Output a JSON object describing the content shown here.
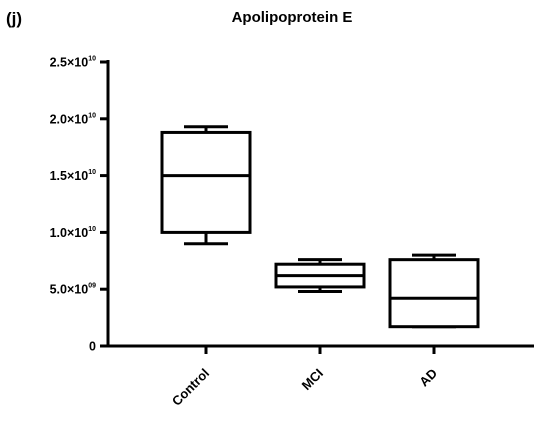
{
  "panel_label": "(j)",
  "chart_data": {
    "type": "box",
    "title": "Apolipoprotein E",
    "xlabel": "",
    "ylabel": "",
    "ylim": [
      0,
      25000000000.0
    ],
    "y_ticks": [
      {
        "value": 0,
        "mantissa": "0",
        "exponent": ""
      },
      {
        "value": 5000000000.0,
        "mantissa": "5.0×10",
        "exponent": "09"
      },
      {
        "value": 10000000000.0,
        "mantissa": "1.0×10",
        "exponent": "10"
      },
      {
        "value": 15000000000.0,
        "mantissa": "1.5×10",
        "exponent": "10"
      },
      {
        "value": 20000000000.0,
        "mantissa": "2.0×10",
        "exponent": "10"
      },
      {
        "value": 25000000000.0,
        "mantissa": "2.5×10",
        "exponent": "10"
      }
    ],
    "categories": [
      "Control",
      "MCI",
      "AD"
    ],
    "boxes": [
      {
        "category": "Control",
        "min": 9000000000.0,
        "q1": 10000000000.0,
        "median": 15000000000.0,
        "q3": 18800000000.0,
        "max": 19300000000.0
      },
      {
        "category": "MCI",
        "min": 4800000000.0,
        "q1": 5200000000.0,
        "median": 6200000000.0,
        "q3": 7200000000.0,
        "max": 7600000000.0
      },
      {
        "category": "AD",
        "min": 1700000000.0,
        "q1": 1700000000.0,
        "median": 4200000000.0,
        "q3": 7600000000.0,
        "max": 8000000000.0
      }
    ],
    "grid": false,
    "legend": "none"
  }
}
